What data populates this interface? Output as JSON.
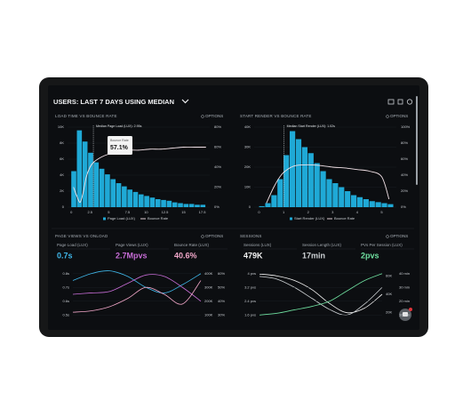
{
  "header": {
    "title": "USERS: LAST 7 DAYS USING MEDIAN"
  },
  "panels": [
    {
      "type": "histogram",
      "title": "LOAD TIME VS BOUNCE RATE",
      "options": "OPTIONS",
      "annotation": "Median Page Load (LUX): 2.95s",
      "median": 2.95,
      "tooltip": {
        "label": "Bounce Rate",
        "value": 57.1,
        "value_label": "57.1%"
      },
      "bar_name": "Page Load (LUX)",
      "color": "#1fa9d6",
      "bins": [
        0,
        0.75,
        1.5,
        2.25,
        3,
        3.75,
        4.5,
        5.25,
        6,
        6.75,
        7.5,
        8.25,
        9,
        9.75,
        10.5,
        11.25,
        12,
        12.75,
        13.5,
        14.25,
        15,
        15.75,
        16.5,
        17.25,
        18
      ],
      "values": [
        4.5,
        9.6,
        8.2,
        6.8,
        5.6,
        4.8,
        4.1,
        3.5,
        3.0,
        2.6,
        2.2,
        1.9,
        1.6,
        1.4,
        1.2,
        1.0,
        0.9,
        0.8,
        0.6,
        0.5,
        0.4,
        0.4,
        0.3,
        0.3
      ],
      "xlim": [
        -0.5,
        18.5
      ],
      "xticks": [
        0,
        2.5,
        5,
        7.5,
        10,
        12.5,
        15,
        17.5
      ],
      "ylim": [
        0,
        10
      ],
      "yticks": [
        0,
        {
          "value": 2,
          "label": "2K"
        },
        {
          "value": 4,
          "label": "4K"
        },
        {
          "value": 6,
          "label": "6K"
        },
        {
          "value": 8,
          "label": "8K"
        },
        {
          "value": 10,
          "label": "10K"
        }
      ],
      "y2lim": [
        0,
        80
      ],
      "y2ticks": [
        {
          "value": 0,
          "label": "0%"
        },
        {
          "value": 20,
          "label": "20%"
        },
        {
          "value": 40,
          "label": "40%"
        },
        {
          "value": 60,
          "label": "60%"
        },
        {
          "value": 80,
          "label": "80%"
        }
      ],
      "line": {
        "name": "Bounce Rate",
        "color": "#f3e3e8",
        "x": [
          0.3,
          0.8,
          1.2,
          1.6,
          2,
          2.5,
          3,
          4,
          5,
          6,
          7.5,
          9,
          10.5,
          12,
          13.5,
          15,
          16.5,
          18
        ],
        "values": [
          20,
          10,
          5,
          15,
          30,
          40,
          45,
          50,
          53,
          55,
          57,
          57,
          58,
          58,
          59,
          60,
          60,
          60
        ]
      }
    },
    {
      "type": "histogram",
      "title": "START RENDER VS BOUNCE RATE",
      "options": "OPTIONS",
      "annotation": "Median Start Render (LUX): 1.02s",
      "median": 1.02,
      "bar_name": "Start Render (LUX)",
      "color": "#1fa9d6",
      "bins": [
        0,
        0.25,
        0.5,
        0.75,
        1,
        1.25,
        1.5,
        1.75,
        2,
        2.25,
        2.5,
        2.75,
        3,
        3.25,
        3.5,
        3.75,
        4,
        4.25,
        4.5,
        4.75,
        5,
        5.25,
        5.5
      ],
      "values": [
        0.5,
        2,
        6,
        14,
        26,
        38,
        34,
        30,
        27,
        22,
        18,
        14,
        12,
        10,
        8,
        6,
        5,
        4,
        3,
        2.5,
        2,
        1.5
      ],
      "xlim": [
        -0.2,
        5.6
      ],
      "xticks": [
        0,
        1,
        2,
        3,
        4,
        5
      ],
      "ylim": [
        0,
        40
      ],
      "yticks": [
        0,
        {
          "value": 10,
          "label": "10K"
        },
        {
          "value": 20,
          "label": "20K"
        },
        {
          "value": 30,
          "label": "30K"
        },
        {
          "value": 40,
          "label": "40K"
        }
      ],
      "y2lim": [
        0,
        100
      ],
      "y2ticks": [
        {
          "value": 0,
          "label": "0%"
        },
        {
          "value": 20,
          "label": "20%"
        },
        {
          "value": 40,
          "label": "40%"
        },
        {
          "value": 60,
          "label": "60%"
        },
        {
          "value": 80,
          "label": "80%"
        },
        {
          "value": 100,
          "label": "100%"
        }
      ],
      "line": {
        "name": "Bounce Rate",
        "color": "#f3e3e8",
        "x": [
          0.3,
          0.6,
          0.9,
          1.2,
          1.5,
          2,
          2.5,
          3,
          3.5,
          4,
          4.5,
          5,
          5.3
        ],
        "values": [
          5,
          25,
          40,
          48,
          52,
          53,
          52,
          50,
          49,
          47,
          45,
          38,
          10
        ]
      }
    },
    {
      "type": "lines",
      "title": "PAGE VIEWS VS ONLOAD",
      "options": "OPTIONS",
      "series": [
        {
          "name": "Page Load (LUX)",
          "stat": "0.7s",
          "color": "#3fb6e8",
          "side": "left",
          "ylim": [
            0.45,
            0.85
          ],
          "ticks": [
            {
              "value": 0.5,
              "label": "0.5s"
            },
            {
              "value": 0.6,
              "label": "0.6s"
            },
            {
              "value": 0.7,
              "label": "0.7s"
            },
            {
              "value": 0.8,
              "label": "0.8s"
            }
          ],
          "values": [
            0.75,
            0.8,
            0.82,
            0.78,
            0.7,
            0.66,
            0.72,
            0.8
          ]
        },
        {
          "name": "Page Views (LUX)",
          "stat": "2.7Mpvs",
          "color": "#c86dd7",
          "side": "right",
          "ylim": [
            50,
            450
          ],
          "ticks": [
            {
              "value": 100,
              "label": "100K"
            },
            {
              "value": 200,
              "label": "200K"
            },
            {
              "value": 300,
              "label": "300K"
            },
            {
              "value": 400,
              "label": "400K"
            }
          ],
          "values": [
            250,
            260,
            270,
            330,
            390,
            380,
            300,
            200
          ]
        },
        {
          "name": "Bounce Rate (LUX)",
          "stat": "40.6%",
          "color": "#f2a7c9",
          "side": "right2",
          "ylim": [
            25,
            65
          ],
          "ticks": [
            {
              "value": 30,
              "label": "30%"
            },
            {
              "value": 40,
              "label": "40%"
            },
            {
              "value": 50,
              "label": "50%"
            },
            {
              "value": 60,
              "label": "60%"
            }
          ],
          "values": [
            32,
            33,
            36,
            42,
            50,
            45,
            38,
            55
          ]
        }
      ]
    },
    {
      "type": "lines",
      "title": "SESSIONS",
      "options": "OPTIONS",
      "series": [
        {
          "name": "Sessions (LUX)",
          "stat": "479K",
          "color": "#f4f4f4",
          "side": "right",
          "ylim": [
            10,
            70
          ],
          "ticks": [
            {
              "value": 20,
              "label": "20K"
            },
            {
              "value": 40,
              "label": "40K"
            },
            {
              "value": 60,
              "label": "60K"
            }
          ],
          "values": [
            62,
            60,
            55,
            45,
            30,
            20,
            25,
            40
          ]
        },
        {
          "name": "Session Length (LUX)",
          "stat": "17min",
          "color": "#cfd3d6",
          "side": "right2",
          "ylim": [
            5,
            45
          ],
          "ticks": [
            {
              "value": 10,
              "label": "10 min"
            },
            {
              "value": 20,
              "label": "20 min"
            },
            {
              "value": 30,
              "label": "30 min"
            },
            {
              "value": 40,
              "label": "40 min"
            }
          ],
          "values": [
            38,
            36,
            30,
            22,
            14,
            10,
            18,
            30
          ]
        },
        {
          "name": "PVs Per Session (LUX)",
          "stat": "2pvs",
          "color": "#6fe0a0",
          "side": "left",
          "ylim": [
            1.2,
            4.4
          ],
          "ticks": [
            {
              "value": 1.6,
              "label": "1.6 pvs"
            },
            {
              "value": 2.4,
              "label": "2.4 pvs"
            },
            {
              "value": 3.2,
              "label": "3.2 pvs"
            },
            {
              "value": 4,
              "label": "4 pvs"
            }
          ],
          "values": [
            1.6,
            1.7,
            1.9,
            2.1,
            2.4,
            3.0,
            3.6,
            4.0
          ]
        }
      ]
    }
  ]
}
